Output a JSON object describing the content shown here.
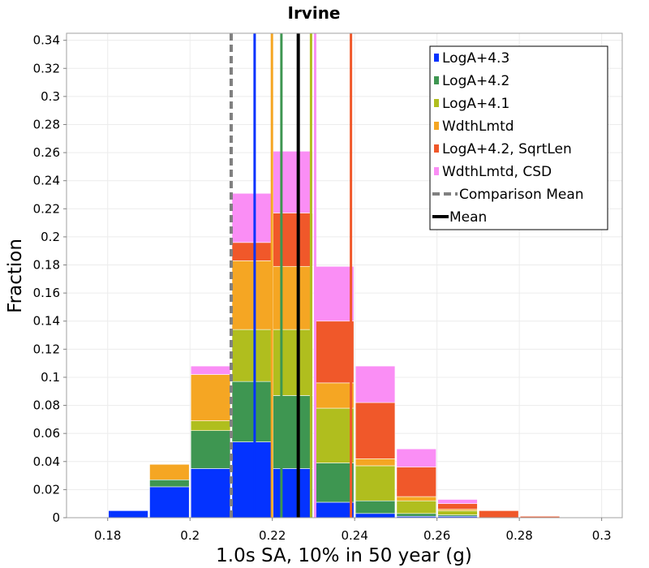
{
  "chart_data": {
    "type": "bar",
    "stacked": true,
    "title": "Irvine",
    "xlabel": "1.0s SA, 10% in 50 year (g)",
    "ylabel": "Fraction",
    "xlim": [
      0.17,
      0.305
    ],
    "ylim": [
      0,
      0.345
    ],
    "xticks": [
      0.18,
      0.2,
      0.22,
      0.24,
      0.26,
      0.28,
      0.3
    ],
    "xtick_labels": [
      "0.18",
      "0.2",
      "0.22",
      "0.24",
      "0.26",
      "0.28",
      "0.3"
    ],
    "yticks": [
      0,
      0.02,
      0.04,
      0.06,
      0.08,
      0.1,
      0.12,
      0.14,
      0.16,
      0.18,
      0.2,
      0.22,
      0.24,
      0.26,
      0.28,
      0.3,
      0.32,
      0.34
    ],
    "ytick_labels": [
      "0",
      "0.02",
      "0.04",
      "0.06",
      "0.08",
      "0.1",
      "0.12",
      "0.14",
      "0.16",
      "0.18",
      "0.2",
      "0.22",
      "0.24",
      "0.26",
      "0.28",
      "0.3",
      "0.32",
      "0.34"
    ],
    "grid": true,
    "bin_width": 0.01,
    "bin_centers": [
      0.175,
      0.185,
      0.195,
      0.205,
      0.215,
      0.225,
      0.235,
      0.245,
      0.255,
      0.265,
      0.275,
      0.285,
      0.295
    ],
    "series": [
      {
        "name": "LogA+4.3",
        "color": "#0433ff",
        "values": [
          0.0,
          0.005,
          0.022,
          0.035,
          0.054,
          0.035,
          0.011,
          0.003,
          0.001,
          0.001,
          0.0,
          0.0,
          0.0
        ]
      },
      {
        "name": "LogA+4.2",
        "color": "#3e9651",
        "values": [
          0.0,
          0.0,
          0.005,
          0.027,
          0.043,
          0.052,
          0.028,
          0.009,
          0.002,
          0.001,
          0.0,
          0.0,
          0.0
        ]
      },
      {
        "name": "LogA+4.1",
        "color": "#b0be1e",
        "values": [
          0.0,
          0.0,
          0.0,
          0.007,
          0.037,
          0.047,
          0.039,
          0.025,
          0.009,
          0.003,
          0.0,
          0.0,
          0.0
        ]
      },
      {
        "name": "WdthLmtd",
        "color": "#f5a623",
        "values": [
          0.0,
          0.0,
          0.011,
          0.033,
          0.049,
          0.045,
          0.018,
          0.005,
          0.003,
          0.001,
          0.0,
          0.0,
          0.0
        ]
      },
      {
        "name": "LogA+4.2, SqrtLen",
        "color": "#f0582a",
        "values": [
          0.0,
          0.0,
          0.0,
          0.0,
          0.013,
          0.038,
          0.044,
          0.04,
          0.021,
          0.004,
          0.005,
          0.001,
          0.0
        ]
      },
      {
        "name": "WdthLmtd, CSD",
        "color": "#fa8ef5",
        "values": [
          0.0,
          0.0,
          0.0,
          0.006,
          0.035,
          0.044,
          0.039,
          0.026,
          0.013,
          0.003,
          0.0,
          0.0,
          0.0
        ]
      }
    ],
    "vertical_lines": [
      {
        "name": "LogA+4.3",
        "x": 0.2157,
        "color": "#0433ff",
        "style": "solid"
      },
      {
        "name": "WdthLmtd",
        "x": 0.2199,
        "color": "#f5a623",
        "style": "solid"
      },
      {
        "name": "LogA+4.2",
        "x": 0.2222,
        "color": "#3e9651",
        "style": "solid"
      },
      {
        "name": "LogA+4.1",
        "x": 0.2294,
        "color": "#b0be1e",
        "style": "solid"
      },
      {
        "name": "WdthLmtd, CSD",
        "x": 0.2304,
        "color": "#fa8ef5",
        "style": "solid"
      },
      {
        "name": "LogA+4.2, SqrtLen",
        "x": 0.2391,
        "color": "#f0582a",
        "style": "solid"
      },
      {
        "name": "Comparison Mean",
        "x": 0.21,
        "color": "#808080",
        "style": "dashed"
      },
      {
        "name": "Mean",
        "x": 0.2263,
        "color": "#000000",
        "style": "solid"
      }
    ],
    "legend": {
      "placement": "top-right",
      "entries": [
        {
          "label": "LogA+4.3",
          "color": "#0433ff",
          "kind": "box"
        },
        {
          "label": "LogA+4.2",
          "color": "#3e9651",
          "kind": "box"
        },
        {
          "label": "LogA+4.1",
          "color": "#b0be1e",
          "kind": "box"
        },
        {
          "label": "WdthLmtd",
          "color": "#f5a623",
          "kind": "box"
        },
        {
          "label": "LogA+4.2, SqrtLen",
          "color": "#f0582a",
          "kind": "box"
        },
        {
          "label": "WdthLmtd, CSD",
          "color": "#fa8ef5",
          "kind": "box"
        },
        {
          "label": "Comparison Mean",
          "color": "#808080",
          "kind": "dashed-line"
        },
        {
          "label": "Mean",
          "color": "#000000",
          "kind": "line"
        }
      ]
    }
  }
}
